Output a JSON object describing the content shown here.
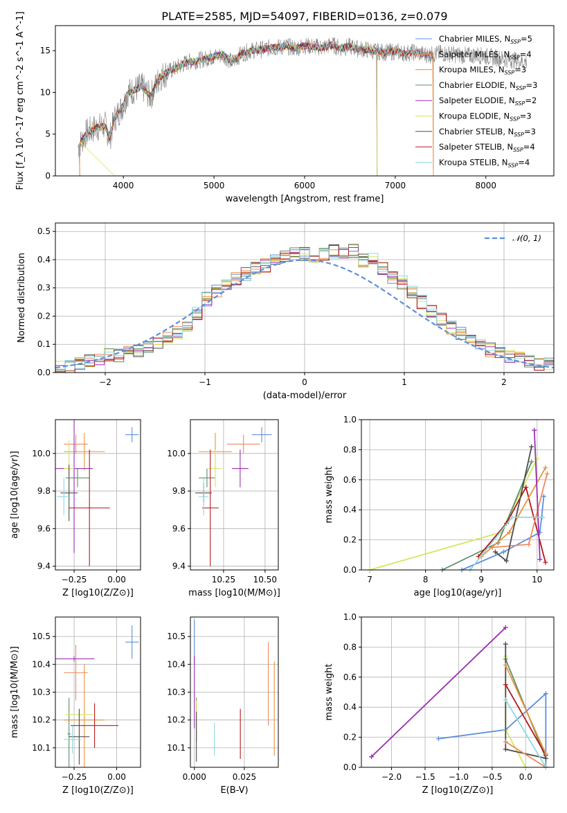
{
  "title": "PLATE=2585, MJD=54097, FIBERID=0136, z=0.079",
  "colors": {
    "Chabrier MILES": "#5b8fdc",
    "Salpeter MILES": "#f08a5d",
    "Kroupa MILES": "#e8923a",
    "Chabrier ELODIE": "#5e8c68",
    "Salpeter ELODIE": "#9a2fb0",
    "Kroupa ELODIE": "#d6e65e",
    "Chabrier STELIB": "#4c4c4c",
    "Salpeter STELIB": "#b2181b",
    "Kroupa STELIB": "#8ed8e0",
    "pink": "#e57fbf",
    "gray": "#808080"
  },
  "chart_data": [
    {
      "id": "spectrum",
      "type": "line",
      "xlabel": "wavelength [Angstrom, rest frame]",
      "ylabel": "Flux [f_λ 10^-17 erg cm^-2 s^-1 A^-1]",
      "xlim": [
        3250,
        8750
      ],
      "ylim": [
        0,
        18
      ],
      "xticks": [
        4000,
        5000,
        6000,
        7000,
        8000
      ],
      "yticks": [
        0,
        5,
        10,
        15
      ],
      "grid": false,
      "legend_position": "right",
      "envelope": [
        [
          3500,
          3.5
        ],
        [
          3600,
          5.2
        ],
        [
          3700,
          5.8
        ],
        [
          3800,
          6.0
        ],
        [
          3850,
          4.5
        ],
        [
          3900,
          6.8
        ],
        [
          4000,
          8.5
        ],
        [
          4050,
          10.0
        ],
        [
          4100,
          10.2
        ],
        [
          4200,
          10.7
        ],
        [
          4300,
          9.5
        ],
        [
          4400,
          11.8
        ],
        [
          4500,
          12.5
        ],
        [
          4600,
          13.0
        ],
        [
          4700,
          13.6
        ],
        [
          4800,
          13.8
        ],
        [
          4900,
          14.0
        ],
        [
          5000,
          14.3
        ],
        [
          5100,
          14.5
        ],
        [
          5200,
          13.6
        ],
        [
          5300,
          14.6
        ],
        [
          5400,
          15.0
        ],
        [
          5500,
          15.1
        ],
        [
          5600,
          15.3
        ],
        [
          5700,
          15.4
        ],
        [
          5800,
          15.5
        ],
        [
          5900,
          15.3
        ],
        [
          6000,
          15.6
        ],
        [
          6100,
          15.5
        ],
        [
          6200,
          15.4
        ],
        [
          6300,
          15.7
        ],
        [
          6400,
          15.3
        ],
        [
          6500,
          15.5
        ],
        [
          6600,
          15.2
        ],
        [
          6700,
          15.1
        ],
        [
          6800,
          14.9
        ],
        [
          6900,
          14.8
        ],
        [
          7000,
          14.9
        ],
        [
          7100,
          14.7
        ],
        [
          7200,
          14.8
        ],
        [
          7300,
          14.6
        ],
        [
          7400,
          14.5
        ],
        [
          7500,
          14.7
        ],
        [
          7600,
          14.6
        ],
        [
          7700,
          14.5
        ],
        [
          7800,
          14.4
        ],
        [
          7900,
          14.5
        ],
        [
          8000,
          14.3
        ],
        [
          8100,
          14.2
        ],
        [
          8200,
          14.0
        ],
        [
          8300,
          13.9
        ],
        [
          8400,
          13.7
        ]
      ],
      "legend": [
        {
          "name": "Chabrier MILES",
          "sub": "SSP",
          "n": "5"
        },
        {
          "name": "Salpeter MILES",
          "sub": "SSP",
          "n": "4"
        },
        {
          "name": "Kroupa MILES",
          "sub": "SSP",
          "n": "3"
        },
        {
          "name": "Chabrier ELODIE",
          "sub": "SSP",
          "n": "3"
        },
        {
          "name": "Salpeter ELODIE",
          "sub": "SSP",
          "n": "2"
        },
        {
          "name": "Kroupa ELODIE",
          "sub": "SSP",
          "n": "3"
        },
        {
          "name": "Chabrier STELIB",
          "sub": "SSP",
          "n": "3"
        },
        {
          "name": "Salpeter STELIB",
          "sub": "SSP",
          "n": "4"
        },
        {
          "name": "Kroupa STELIB",
          "sub": "SSP",
          "n": "4"
        }
      ]
    },
    {
      "id": "residuals",
      "type": "line",
      "xlabel": "(data-model)/error",
      "ylabel": "Normed distribution",
      "xlim": [
        -2.5,
        2.5
      ],
      "ylim": [
        0,
        0.53
      ],
      "xticks": [
        -2,
        -1,
        0,
        1,
        2
      ],
      "xtick_labels": [
        "−2",
        "−1",
        "0",
        "1",
        "2"
      ],
      "yticks": [
        0,
        0.1,
        0.2,
        0.3,
        0.4,
        0.5
      ],
      "ytick_labels": [
        "0.0",
        "0.1",
        "0.2",
        "0.3",
        "0.4",
        "0.5"
      ],
      "grid": true,
      "legend_position": "top-right",
      "legend_label": "𝒩(0, 1)",
      "hist_base": [
        0.02,
        0.02,
        0.03,
        0.04,
        0.05,
        0.06,
        0.06,
        0.07,
        0.08,
        0.09,
        0.1,
        0.12,
        0.14,
        0.17,
        0.21,
        0.26,
        0.29,
        0.31,
        0.33,
        0.35,
        0.37,
        0.38,
        0.4,
        0.41,
        0.42,
        0.42,
        0.41,
        0.42,
        0.43,
        0.43,
        0.43,
        0.4,
        0.4,
        0.37,
        0.34,
        0.32,
        0.29,
        0.25,
        0.22,
        0.19,
        0.16,
        0.14,
        0.12,
        0.1,
        0.08,
        0.07,
        0.06,
        0.05,
        0.04,
        0.03,
        0.03
      ]
    },
    {
      "id": "age-z",
      "type": "scatter",
      "xlabel": "Z [log10(Z/Z⊙)]",
      "ylabel": "age [log10(age/yr)]",
      "xlim": [
        -0.36,
        0.14
      ],
      "ylim": [
        9.38,
        10.18
      ],
      "xticks": [
        -0.25,
        0.0
      ],
      "xtick_labels": [
        "−0.25",
        "0.00"
      ],
      "yticks": [
        9.4,
        9.6,
        9.8,
        10.0
      ],
      "ytick_labels": [
        "9.4",
        "9.6",
        "9.8",
        "10.0"
      ],
      "grid": true,
      "points": [
        {
          "c": "Chabrier MILES",
          "x": 0.09,
          "y": 10.1,
          "ex": 0.04,
          "ey": 0.04
        },
        {
          "c": "Salpeter MILES",
          "x": -0.24,
          "y": 10.05,
          "ex": 0.07,
          "ey": 0.05
        },
        {
          "c": "Kroupa MILES",
          "x": -0.19,
          "y": 10.01,
          "ex": 0.12,
          "ey": 0.1
        },
        {
          "c": "Chabrier ELODIE",
          "x": -0.23,
          "y": 9.87,
          "ex": 0.07,
          "ey": 0.05
        },
        {
          "c": "Salpeter ELODIE",
          "x": -0.25,
          "y": 9.92,
          "ex": 0.11,
          "ey": 0.45
        },
        {
          "c": "Kroupa ELODIE",
          "x": -0.28,
          "y": 9.92,
          "ex": 0.03,
          "ey": 0.15
        },
        {
          "c": "Chabrier STELIB",
          "x": -0.28,
          "y": 9.79,
          "ex": 0.05,
          "ey": 0.15
        },
        {
          "c": "Salpeter STELIB",
          "x": -0.16,
          "y": 9.71,
          "ex": 0.12,
          "ey": 0.31
        },
        {
          "c": "Kroupa STELIB",
          "x": -0.31,
          "y": 9.77,
          "ex": 0.04,
          "ey": 0.1
        }
      ]
    },
    {
      "id": "age-mass",
      "type": "scatter",
      "xlabel": "mass [log10(M/M⊙)]",
      "ylabel": "",
      "xlim": [
        10.05,
        10.58
      ],
      "ylim": [
        9.38,
        10.18
      ],
      "xticks": [
        10.25,
        10.5
      ],
      "xtick_labels": [
        "10.25",
        "10.50"
      ],
      "yticks": [
        9.4,
        9.6,
        9.8,
        10.0
      ],
      "ytick_labels": [
        "9.4",
        "9.6",
        "9.8",
        "10.0"
      ],
      "grid": true,
      "points": [
        {
          "c": "Chabrier MILES",
          "x": 10.48,
          "y": 10.1,
          "ex": 0.06,
          "ey": 0.04
        },
        {
          "c": "Salpeter MILES",
          "x": 10.37,
          "y": 10.05,
          "ex": 0.1,
          "ey": 0.05
        },
        {
          "c": "Kroupa MILES",
          "x": 10.2,
          "y": 10.01,
          "ex": 0.1,
          "ey": 0.1
        },
        {
          "c": "Chabrier ELODIE",
          "x": 10.15,
          "y": 9.87,
          "ex": 0.05,
          "ey": 0.05
        },
        {
          "c": "Salpeter ELODIE",
          "x": 10.35,
          "y": 9.92,
          "ex": 0.05,
          "ey": 0.1
        },
        {
          "c": "Kroupa ELODIE",
          "x": 10.2,
          "y": 9.92,
          "ex": 0.04,
          "ey": 0.1
        },
        {
          "c": "Chabrier STELIB",
          "x": 10.13,
          "y": 9.79,
          "ex": 0.05,
          "ey": 0.05
        },
        {
          "c": "Salpeter STELIB",
          "x": 10.17,
          "y": 9.71,
          "ex": 0.05,
          "ey": 0.31
        },
        {
          "c": "Kroupa STELIB",
          "x": 10.13,
          "y": 9.77,
          "ex": 0.03,
          "ey": 0.1
        }
      ]
    },
    {
      "id": "weight-age",
      "type": "line",
      "xlabel": "age [log10(age/yr)]",
      "ylabel": "mass weight",
      "xlim": [
        6.85,
        10.3
      ],
      "ylim": [
        0,
        1.0
      ],
      "xticks": [
        7,
        8,
        9,
        10
      ],
      "yticks": [
        0,
        0.2,
        0.4,
        0.6,
        0.8,
        1.0
      ],
      "ytick_labels": [
        "0.0",
        "0.2",
        "0.4",
        "0.6",
        "0.8",
        "1.0"
      ],
      "grid": true,
      "series": [
        {
          "c": "Kroupa ELODIE",
          "points": [
            [
              7.0,
              0.0
            ],
            [
              9.35,
              0.25
            ],
            [
              10.0,
              0.74
            ]
          ]
        },
        {
          "c": "Chabrier ELODIE",
          "points": [
            [
              8.3,
              0.0
            ],
            [
              9.3,
              0.18
            ],
            [
              9.9,
              0.72
            ]
          ]
        },
        {
          "c": "Salpeter STELIB",
          "points": [
            [
              8.95,
              0.09
            ],
            [
              9.45,
              0.31
            ],
            [
              9.8,
              0.55
            ],
            [
              10.15,
              0.05
            ]
          ]
        },
        {
          "c": "Chabrier MILES",
          "points": [
            [
              8.65,
              0.0
            ],
            [
              9.4,
              0.12
            ],
            [
              10.05,
              0.25
            ],
            [
              10.12,
              0.49
            ]
          ]
        },
        {
          "c": "Salpeter MILES",
          "points": [
            [
              9.2,
              0.15
            ],
            [
              9.85,
              0.17
            ],
            [
              10.18,
              0.64
            ]
          ]
        },
        {
          "c": "Kroupa MILES",
          "points": [
            [
              9.0,
              0.09
            ],
            [
              9.5,
              0.25
            ],
            [
              10.15,
              0.68
            ]
          ]
        },
        {
          "c": "Salpeter ELODIE",
          "points": [
            [
              9.95,
              0.93
            ],
            [
              10.05,
              0.07
            ]
          ]
        },
        {
          "c": "Chabrier STELIB",
          "points": [
            [
              9.25,
              0.12
            ],
            [
              9.45,
              0.06
            ],
            [
              9.9,
              0.82
            ]
          ]
        },
        {
          "c": "Kroupa STELIB",
          "points": [
            [
              8.8,
              0.0
            ],
            [
              9.55,
              0.35
            ],
            [
              10.1,
              0.35
            ]
          ]
        }
      ]
    },
    {
      "id": "mass-z",
      "type": "scatter",
      "xlabel": "Z [log10(Z/Z⊙)]",
      "ylabel": "mass [log10(M/M⊙)]",
      "xlim": [
        -0.36,
        0.14
      ],
      "ylim": [
        10.03,
        10.57
      ],
      "xticks": [
        -0.25,
        0.0
      ],
      "xtick_labels": [
        "−0.25",
        "0.00"
      ],
      "yticks": [
        10.1,
        10.2,
        10.3,
        10.4,
        10.5
      ],
      "ytick_labels": [
        "10.1",
        "10.2",
        "10.3",
        "10.4",
        "10.5"
      ],
      "grid": true,
      "points": [
        {
          "c": "Chabrier MILES",
          "x": 0.09,
          "y": 10.48,
          "ex": 0.04,
          "ey": 0.06
        },
        {
          "c": "Salpeter MILES",
          "x": -0.24,
          "y": 10.37,
          "ex": 0.07,
          "ey": 0.1
        },
        {
          "c": "Kroupa MILES",
          "x": -0.19,
          "y": 10.2,
          "ex": 0.12,
          "ey": 0.2
        },
        {
          "c": "Chabrier ELODIE",
          "x": -0.28,
          "y": 10.15,
          "ex": 0.01,
          "ey": 0.13
        },
        {
          "c": "Salpeter ELODIE",
          "x": -0.25,
          "y": 10.42,
          "ex": 0.12,
          "ey": 0.01
        },
        {
          "c": "Kroupa ELODIE",
          "x": -0.22,
          "y": 10.22,
          "ex": 0.08,
          "ey": 0.01
        },
        {
          "c": "Chabrier STELIB",
          "x": -0.22,
          "y": 10.14,
          "ex": 0.06,
          "ey": 0.1
        },
        {
          "c": "Salpeter STELIB",
          "x": -0.13,
          "y": 10.18,
          "ex": 0.14,
          "ey": 0.08
        },
        {
          "c": "Kroupa STELIB",
          "x": -0.26,
          "y": 10.13,
          "ex": 0.05,
          "ey": 0.05
        }
      ]
    },
    {
      "id": "mass-ebv",
      "type": "scatter",
      "xlabel": "E(B-V)",
      "ylabel": "",
      "xlim": [
        -0.002,
        0.042
      ],
      "ylim": [
        10.03,
        10.57
      ],
      "xticks": [
        0.0,
        0.025
      ],
      "xtick_labels": [
        "0.000",
        "0.025"
      ],
      "yticks": [
        10.1,
        10.2,
        10.3,
        10.4,
        10.5
      ],
      "ytick_labels": [
        "10.1",
        "10.2",
        "10.3",
        "10.4",
        "10.5"
      ],
      "grid": true,
      "points": [
        {
          "c": "Chabrier MILES",
          "x": 0.0,
          "y": 10.48,
          "ex": 0.0,
          "ey": 0.08
        },
        {
          "c": "Salpeter MILES",
          "x": 0.037,
          "y": 10.33,
          "ex": 0.0,
          "ey": 0.15
        },
        {
          "c": "Kroupa MILES",
          "x": 0.04,
          "y": 10.24,
          "ex": 0.0,
          "ey": 0.17
        },
        {
          "c": "Chabrier ELODIE",
          "x": 0.001,
          "y": 10.2,
          "ex": 0.0,
          "ey": 0.08
        },
        {
          "c": "Salpeter ELODIE",
          "x": 0.0,
          "y": 10.3,
          "ex": 0.0,
          "ey": 0.13
        },
        {
          "c": "Kroupa ELODIE",
          "x": 0.001,
          "y": 10.22,
          "ex": 0.0,
          "ey": 0.05
        },
        {
          "c": "Chabrier STELIB",
          "x": 0.001,
          "y": 10.14,
          "ex": 0.0,
          "ey": 0.09
        },
        {
          "c": "Salpeter STELIB",
          "x": 0.023,
          "y": 10.15,
          "ex": 0.0,
          "ey": 0.09
        },
        {
          "c": "Kroupa STELIB",
          "x": 0.01,
          "y": 10.13,
          "ex": 0.0,
          "ey": 0.06
        }
      ]
    },
    {
      "id": "weight-z",
      "type": "line",
      "xlabel": "Z [log10(Z/Z⊙)]",
      "ylabel": "mass weight",
      "xlim": [
        -2.45,
        0.42
      ],
      "ylim": [
        0,
        1.0
      ],
      "xticks": [
        -2.0,
        -1.5,
        -1.0,
        -0.5,
        0.0
      ],
      "xtick_labels": [
        "−2.0",
        "−1.5",
        "−1.0",
        "−0.5",
        "0.0"
      ],
      "yticks": [
        0,
        0.2,
        0.4,
        0.6,
        0.8,
        1.0
      ],
      "ytick_labels": [
        "0.0",
        "0.2",
        "0.4",
        "0.6",
        "0.8",
        "1.0"
      ],
      "grid": true,
      "series": [
        {
          "c": "Salpeter ELODIE",
          "points": [
            [
              -2.3,
              0.07
            ],
            [
              -0.3,
              0.93
            ]
          ]
        },
        {
          "c": "Chabrier MILES",
          "points": [
            [
              -1.3,
              0.19
            ],
            [
              -0.3,
              0.25
            ],
            [
              0.3,
              0.49
            ],
            [
              0.3,
              0.0
            ]
          ]
        },
        {
          "c": "Kroupa ELODIE",
          "points": [
            [
              -0.3,
              0.74
            ],
            [
              -0.3,
              0.25
            ],
            [
              0.0,
              0.0
            ]
          ]
        },
        {
          "c": "Chabrier ELODIE",
          "points": [
            [
              -0.3,
              0.72
            ],
            [
              0.3,
              0.06
            ]
          ]
        },
        {
          "c": "Chabrier STELIB",
          "points": [
            [
              -0.3,
              0.82
            ],
            [
              -0.3,
              0.12
            ],
            [
              0.3,
              0.06
            ]
          ]
        },
        {
          "c": "Salpeter STELIB",
          "points": [
            [
              -0.3,
              0.55
            ],
            [
              0.3,
              0.08
            ]
          ]
        },
        {
          "c": "Kroupa MILES",
          "points": [
            [
              -0.3,
              0.68
            ],
            [
              0.3,
              0.09
            ]
          ]
        },
        {
          "c": "Salpeter MILES",
          "points": [
            [
              -0.3,
              0.17
            ],
            [
              0.3,
              0.0
            ]
          ]
        },
        {
          "c": "Kroupa STELIB",
          "points": [
            [
              -0.3,
              0.45
            ],
            [
              0.3,
              0.0
            ]
          ]
        }
      ]
    }
  ]
}
